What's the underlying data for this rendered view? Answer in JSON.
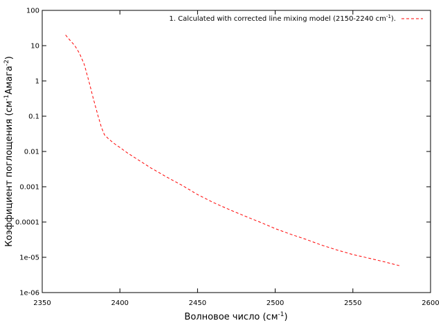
{
  "chart_data": {
    "type": "line",
    "xlabel": "Волновое число (см",
    "xlabel_sup": "-1",
    "xlabel_end": ")",
    "ylabel": "Коэффициент поглощения (см",
    "ylabel_sup1": "-1",
    "ylabel_mid": "Амага",
    "ylabel_sup2": "-2",
    "ylabel_end": ")",
    "xlim": [
      2350,
      2600
    ],
    "ylim": [
      1e-06,
      100
    ],
    "yscale": "log",
    "x_ticks": [
      2350,
      2400,
      2450,
      2500,
      2550,
      2600
    ],
    "x_tick_labels": [
      "2350",
      "2400",
      "2450",
      "2500",
      "2550",
      "2600"
    ],
    "y_ticks": [
      1e-06,
      1e-05,
      0.0001,
      0.001,
      0.01,
      0.1,
      1,
      10,
      100
    ],
    "y_tick_labels": [
      "1e-06",
      "1e-05",
      "0.0001",
      "0.001",
      "0.01",
      "0.1",
      "1",
      "10",
      "100"
    ],
    "grid": false,
    "legend_position": "top-right",
    "series": [
      {
        "name": "1. Calculated with corrected line mixing model (2150-2240 cm",
        "name_sup": "-1",
        "name_end": ").",
        "color": "#ff0000",
        "style": "dashed",
        "x": [
          2365,
          2368,
          2371,
          2374,
          2377,
          2380,
          2383,
          2386,
          2388,
          2390,
          2393,
          2397,
          2400,
          2405,
          2410,
          2420,
          2430,
          2440,
          2450,
          2460,
          2470,
          2480,
          2490,
          2500,
          2510,
          2520,
          2530,
          2540,
          2550,
          2560,
          2570,
          2580
        ],
        "y": [
          20,
          14,
          10,
          6,
          3,
          1,
          0.3,
          0.1,
          0.05,
          0.03,
          0.022,
          0.016,
          0.013,
          0.009,
          0.0065,
          0.0034,
          0.0019,
          0.0011,
          0.0006,
          0.00036,
          0.00023,
          0.00015,
          0.0001,
          6.5e-05,
          4.5e-05,
          3.2e-05,
          2.2e-05,
          1.6e-05,
          1.2e-05,
          9.5e-06,
          7.5e-06,
          5.8e-06
        ]
      }
    ]
  }
}
